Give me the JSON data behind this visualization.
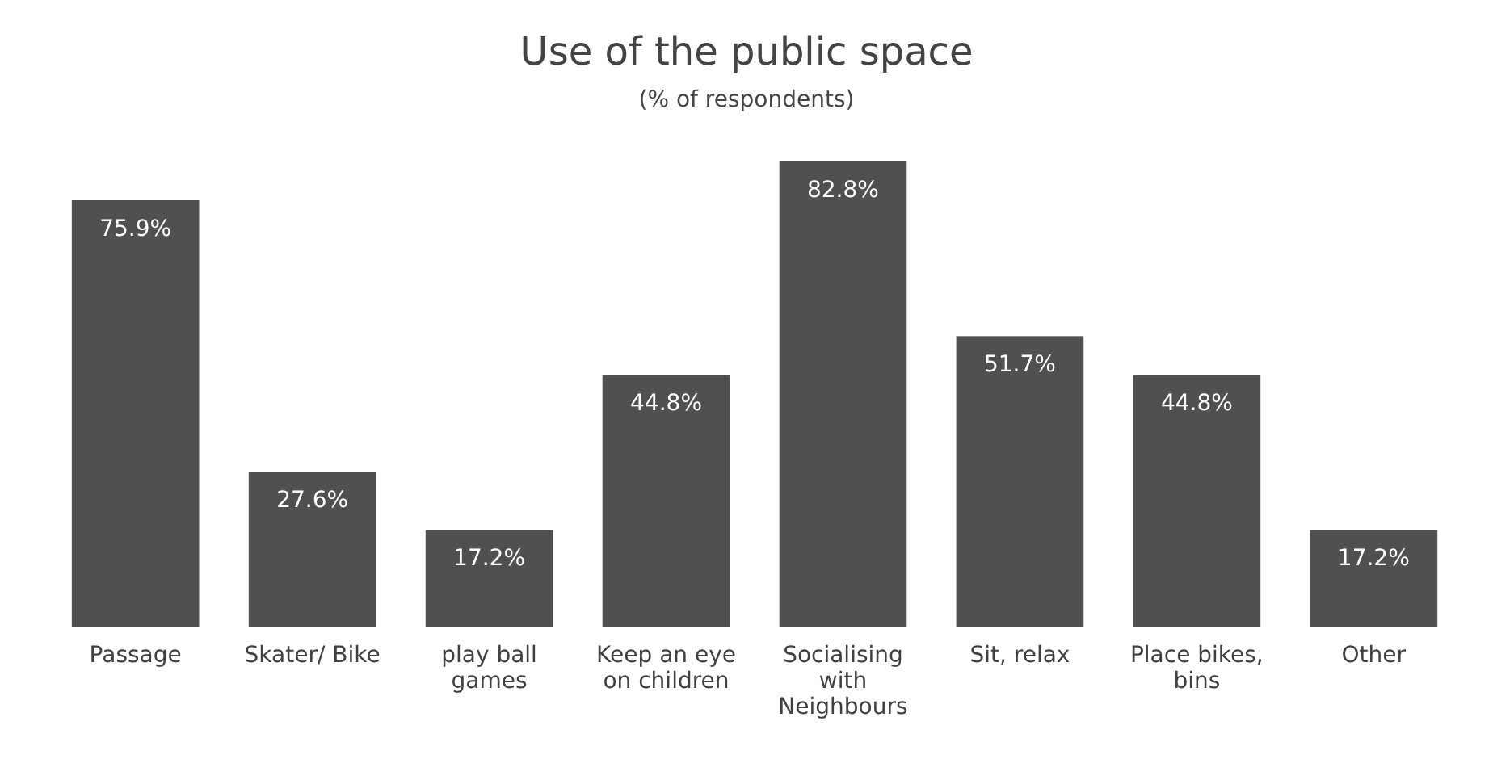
{
  "chart_data": {
    "type": "bar",
    "title": "Use of the public space",
    "subtitle": "(% of respondents)",
    "categories": [
      "Passage",
      "Skater/ Bike",
      "play ball games",
      "Keep an eye on children",
      "Socialising with Neighbours",
      "Sit, relax",
      "Place bikes, bins",
      "Other"
    ],
    "values": [
      75.9,
      27.6,
      17.2,
      44.8,
      82.8,
      51.7,
      44.8,
      17.2
    ],
    "value_labels": [
      "75.9%",
      "27.6%",
      "17.2%",
      "44.8%",
      "82.8%",
      "51.7%",
      "44.8%",
      "17.2%"
    ],
    "color": "#505050"
  }
}
